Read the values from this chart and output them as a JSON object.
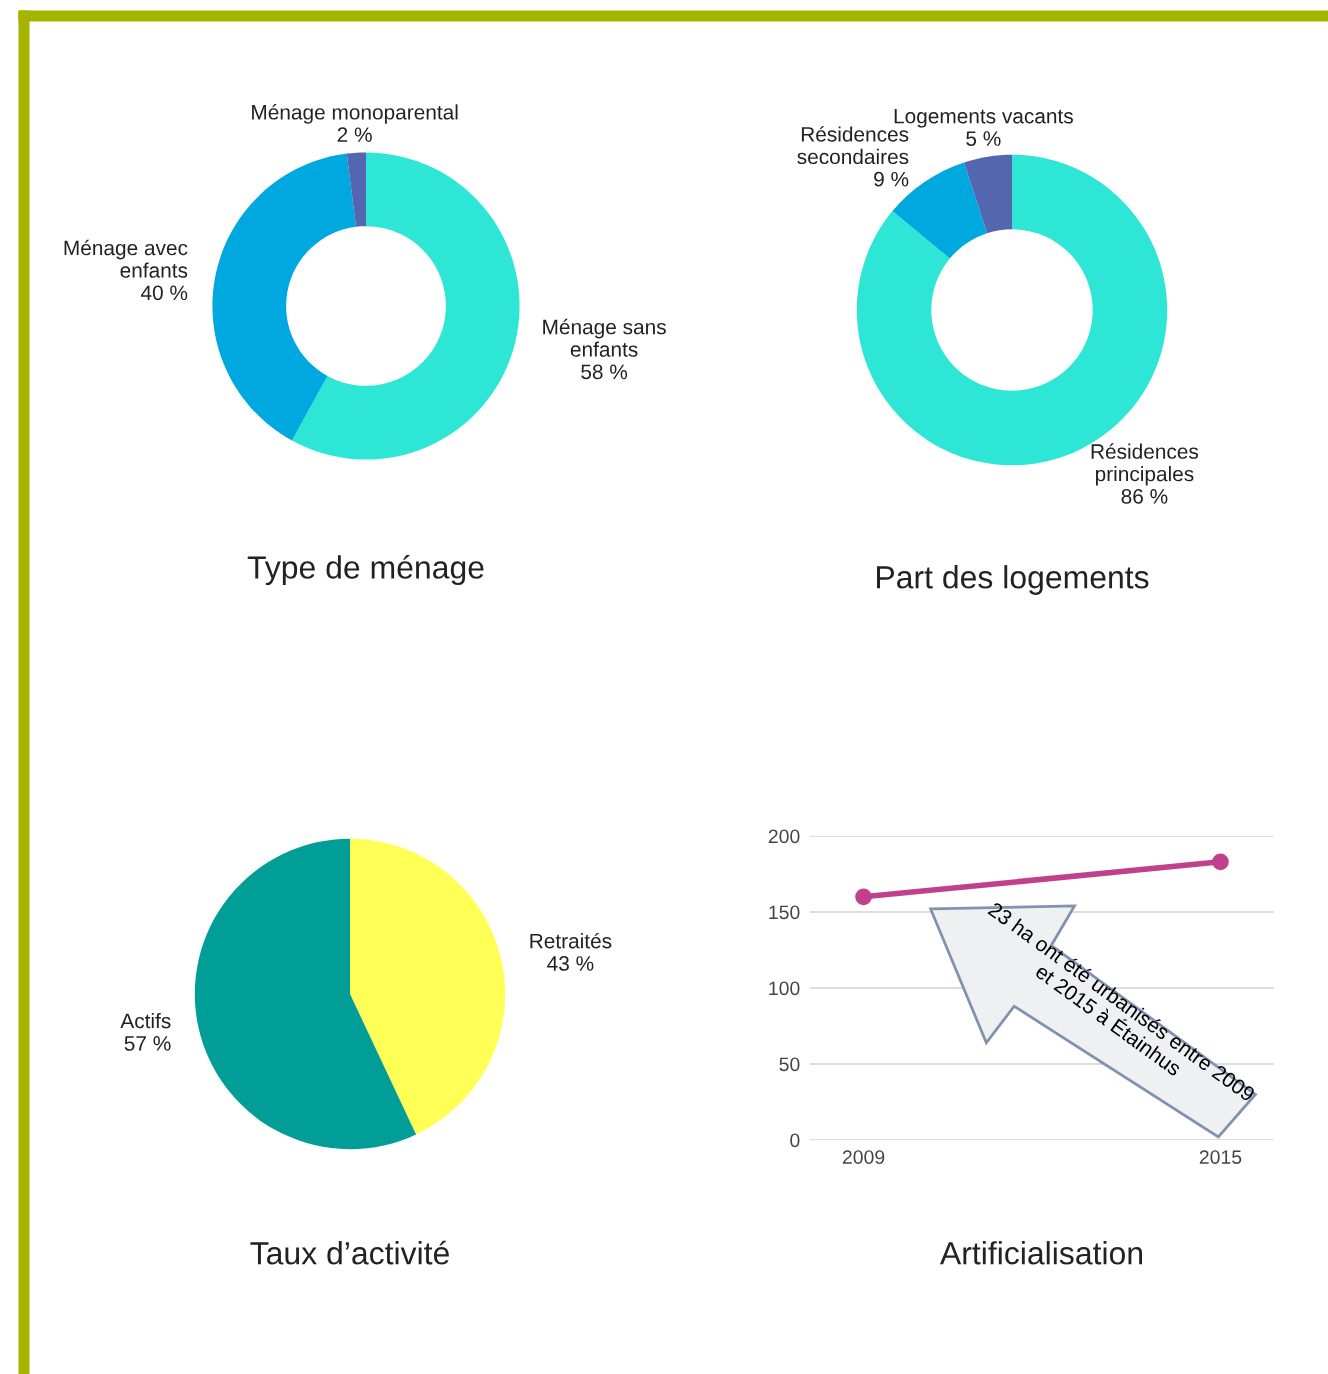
{
  "chart_data": [
    {
      "type": "donut",
      "title": "Type de ménage",
      "categories": [
        "Ménage sans\nenfants",
        "Ménage avec\nenfants",
        "Ménage monoparental"
      ],
      "values": [
        58,
        40,
        2
      ],
      "value_labels": [
        "58 %",
        "40 %",
        "2 %"
      ],
      "colors": [
        "#2ee6d6",
        "#00a8e0",
        "#5566b0"
      ]
    },
    {
      "type": "donut",
      "title": "Part des logements",
      "categories": [
        "Résidences\nprincipales",
        "Résidences\nsecondaires",
        "Logements vacants"
      ],
      "values": [
        86,
        9,
        5
      ],
      "value_labels": [
        "86 %",
        "9 %",
        "5 %"
      ],
      "colors": [
        "#2ee6d6",
        "#00a8e0",
        "#5566b0"
      ]
    },
    {
      "type": "pie",
      "title": "Taux d’activité",
      "categories": [
        "Retraités",
        "Actifs"
      ],
      "values": [
        43,
        57
      ],
      "value_labels": [
        "43 %",
        "57 %"
      ],
      "colors": [
        "#ffff55",
        "#009e96"
      ]
    },
    {
      "type": "line",
      "title": "Artificialisation",
      "categories": [
        "2009",
        "2015"
      ],
      "series": [
        {
          "color": "#c0408c",
          "values": [
            160,
            183
          ]
        }
      ],
      "ylim": [
        0,
        200
      ],
      "yticks": [
        0,
        50,
        100,
        150,
        200
      ],
      "grid": "y",
      "marker": "circle",
      "annotations": [
        "23 ha ont été urbanisés entre 2009 et 2015 à Étainhus"
      ]
    }
  ]
}
